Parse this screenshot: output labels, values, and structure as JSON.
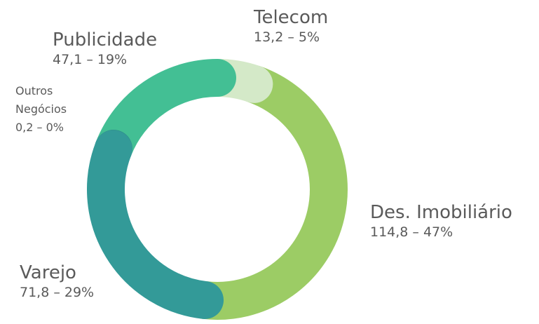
{
  "chart_data": {
    "type": "donut",
    "categories": [
      "Telecom",
      "Des. Imobiliário",
      "Varejo",
      "Outros Negócios",
      "Publicidade"
    ],
    "values": [
      13.2,
      114.8,
      71.8,
      0.2,
      47.1
    ],
    "value_labels": [
      "13,2 – 5%",
      "114,8 – 47%",
      "71,8 – 29%",
      "0,2 – 0%",
      "47,1 – 19%"
    ],
    "colors": [
      "#d4e9c8",
      "#9ccc65",
      "#339a98",
      "#2f8f8c",
      "#43bf94"
    ]
  }
}
